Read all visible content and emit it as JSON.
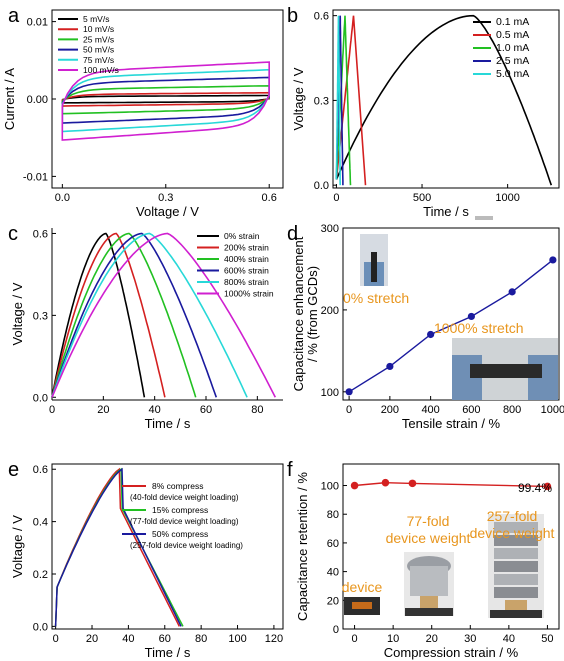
{
  "chart_data": [
    {
      "panel": "a",
      "type": "line",
      "xlabel": "Voltage / V",
      "ylabel": "Current / A",
      "xlim": [
        -0.03,
        0.64
      ],
      "ylim": [
        -0.0115,
        0.0115
      ],
      "xticks": [
        {
          "v": 0.0,
          "t": "0.0"
        },
        {
          "v": 0.3,
          "t": "0.3"
        },
        {
          "v": 0.6,
          "t": "0.6"
        }
      ],
      "yticks": [
        {
          "v": -0.01,
          "t": "-0.01"
        },
        {
          "v": 0.0,
          "t": "0.00"
        },
        {
          "v": 0.01,
          "t": "0.01"
        }
      ],
      "legend_position": "top-left",
      "series": [
        {
          "name": "5 mV/s",
          "color": "#000000",
          "amp": 0.0005
        },
        {
          "name": "10 mV/s",
          "color": "#d42020",
          "amp": 0.0009
        },
        {
          "name": "25 mV/s",
          "color": "#22c022",
          "amp": 0.0019
        },
        {
          "name": "50 mV/s",
          "color": "#1a1a9e",
          "amp": 0.0031
        },
        {
          "name": "75 mV/s",
          "color": "#28d8d8",
          "amp": 0.0042
        },
        {
          "name": "100 mV/s",
          "color": "#d020d0",
          "amp": 0.0053
        }
      ]
    },
    {
      "panel": "b",
      "type": "line",
      "xlabel": "Time / s",
      "ylabel": "Voltage / V",
      "xlim": [
        -20,
        1300
      ],
      "ylim": [
        -0.01,
        0.62
      ],
      "xticks": [
        {
          "v": 0,
          "t": "0"
        },
        {
          "v": 500,
          "t": "500"
        },
        {
          "v": 1000,
          "t": "1000"
        }
      ],
      "yticks": [
        {
          "v": 0.0,
          "t": "0.0"
        },
        {
          "v": 0.3,
          "t": "0.3"
        },
        {
          "v": 0.6,
          "t": "0.6"
        }
      ],
      "legend_position": "top-right",
      "series": [
        {
          "name": "0.1 mA",
          "color": "#000000",
          "charge_end": 800,
          "discharge_end": 1255
        },
        {
          "name": "0.5 mA",
          "color": "#d42020",
          "charge_end": 100,
          "discharge_end": 170
        },
        {
          "name": "1.0 mA",
          "color": "#22c022",
          "charge_end": 50,
          "discharge_end": 82
        },
        {
          "name": "2.5 mA",
          "color": "#1a1a9e",
          "charge_end": 22,
          "discharge_end": 38
        },
        {
          "name": "5.0 mA",
          "color": "#28d8d8",
          "charge_end": 12,
          "discharge_end": 22
        }
      ]
    },
    {
      "panel": "c",
      "type": "line",
      "xlabel": "Time / s",
      "ylabel": "Voltage / V",
      "xlim": [
        0,
        90
      ],
      "ylim": [
        -0.01,
        0.62
      ],
      "xticks": [
        {
          "v": 0,
          "t": "0"
        },
        {
          "v": 20,
          "t": "20"
        },
        {
          "v": 40,
          "t": "40"
        },
        {
          "v": 60,
          "t": "60"
        },
        {
          "v": 80,
          "t": "80"
        }
      ],
      "yticks": [
        {
          "v": 0.0,
          "t": "0.0"
        },
        {
          "v": 0.3,
          "t": "0.3"
        },
        {
          "v": 0.6,
          "t": "0.6"
        }
      ],
      "legend_position": "top-right",
      "series": [
        {
          "name": "0% strain",
          "color": "#000000",
          "charge_end": 21,
          "discharge_end": 36
        },
        {
          "name": "200% strain",
          "color": "#d42020",
          "charge_end": 25,
          "discharge_end": 44
        },
        {
          "name": "400% strain",
          "color": "#22c022",
          "charge_end": 30,
          "discharge_end": 56
        },
        {
          "name": "600% strain",
          "color": "#1a1a9e",
          "charge_end": 35,
          "discharge_end": 64
        },
        {
          "name": "800% strain",
          "color": "#28d8d8",
          "charge_end": 38,
          "discharge_end": 76
        },
        {
          "name": "1000% strain",
          "color": "#d020d0",
          "charge_end": 45,
          "discharge_end": 87
        }
      ]
    },
    {
      "panel": "d",
      "type": "line",
      "xlabel": "Tensile strain / %",
      "ylabel": "Capacitance enhancement",
      "ylabel2": "/ % (from GCDs)",
      "xlim": [
        -30,
        1030
      ],
      "ylim": [
        90,
        300
      ],
      "xticks": [
        {
          "v": 0,
          "t": "0"
        },
        {
          "v": 200,
          "t": "200"
        },
        {
          "v": 400,
          "t": "400"
        },
        {
          "v": 600,
          "t": "600"
        },
        {
          "v": 800,
          "t": "800"
        },
        {
          "v": 1000,
          "t": "1000"
        }
      ],
      "yticks": [
        {
          "v": 100,
          "t": "100"
        },
        {
          "v": 200,
          "t": "200"
        },
        {
          "v": 300,
          "t": "300"
        }
      ],
      "x": [
        0,
        200,
        400,
        600,
        800,
        1000
      ],
      "series": [
        {
          "color": "#1a1a9e",
          "values": [
            100,
            131,
            170,
            192,
            222,
            261
          ]
        }
      ],
      "annotations": [
        "0% stretch",
        "1000% stretch"
      ]
    },
    {
      "panel": "e",
      "type": "line",
      "xlabel": "Time / s",
      "ylabel": "Voltage / V",
      "xlim": [
        -2,
        125
      ],
      "ylim": [
        -0.01,
        0.62
      ],
      "xticks": [
        {
          "v": 0,
          "t": "0"
        },
        {
          "v": 20,
          "t": "20"
        },
        {
          "v": 40,
          "t": "40"
        },
        {
          "v": 60,
          "t": "60"
        },
        {
          "v": 80,
          "t": "80"
        },
        {
          "v": 100,
          "t": "100"
        },
        {
          "v": 120,
          "t": "120"
        }
      ],
      "yticks": [
        {
          "v": 0.0,
          "t": "0.0"
        },
        {
          "v": 0.2,
          "t": "0.2"
        },
        {
          "v": 0.4,
          "t": "0.4"
        },
        {
          "v": 0.6,
          "t": "0.6"
        }
      ],
      "legend_position": "top-right",
      "series": [
        {
          "name": "8% compress",
          "detail": "(40-fold device weight loading)",
          "color": "#d42020",
          "charge_end": 35,
          "discharge_end": 68
        },
        {
          "name": "15% compress",
          "detail": "(77-fold device weight loading)",
          "color": "#22c022",
          "charge_end": 36,
          "discharge_end": 70
        },
        {
          "name": "50% compress",
          "detail": "(257-fold device weight loading)",
          "color": "#1a1a9e",
          "charge_end": 36.5,
          "discharge_end": 69
        }
      ]
    },
    {
      "panel": "f",
      "type": "line",
      "xlabel": "Compression strain / %",
      "ylabel": "Capacitance retention / %",
      "xlim": [
        -3,
        53
      ],
      "ylim": [
        0,
        115
      ],
      "xticks": [
        {
          "v": 0,
          "t": "0"
        },
        {
          "v": 10,
          "t": "10"
        },
        {
          "v": 20,
          "t": "20"
        },
        {
          "v": 30,
          "t": "30"
        },
        {
          "v": 40,
          "t": "40"
        },
        {
          "v": 50,
          "t": "50"
        }
      ],
      "yticks": [
        {
          "v": 0,
          "t": "0"
        },
        {
          "v": 20,
          "t": "20"
        },
        {
          "v": 40,
          "t": "40"
        },
        {
          "v": 60,
          "t": "60"
        },
        {
          "v": 80,
          "t": "80"
        },
        {
          "v": 100,
          "t": "100"
        }
      ],
      "x": [
        0,
        8,
        15,
        50
      ],
      "series": [
        {
          "color": "#d42020",
          "values": [
            100,
            102,
            101.5,
            99.4
          ]
        }
      ],
      "annotations": [
        "99.4%",
        "257-fold",
        "device weight",
        "77-fold",
        "device weight",
        "device"
      ]
    }
  ]
}
